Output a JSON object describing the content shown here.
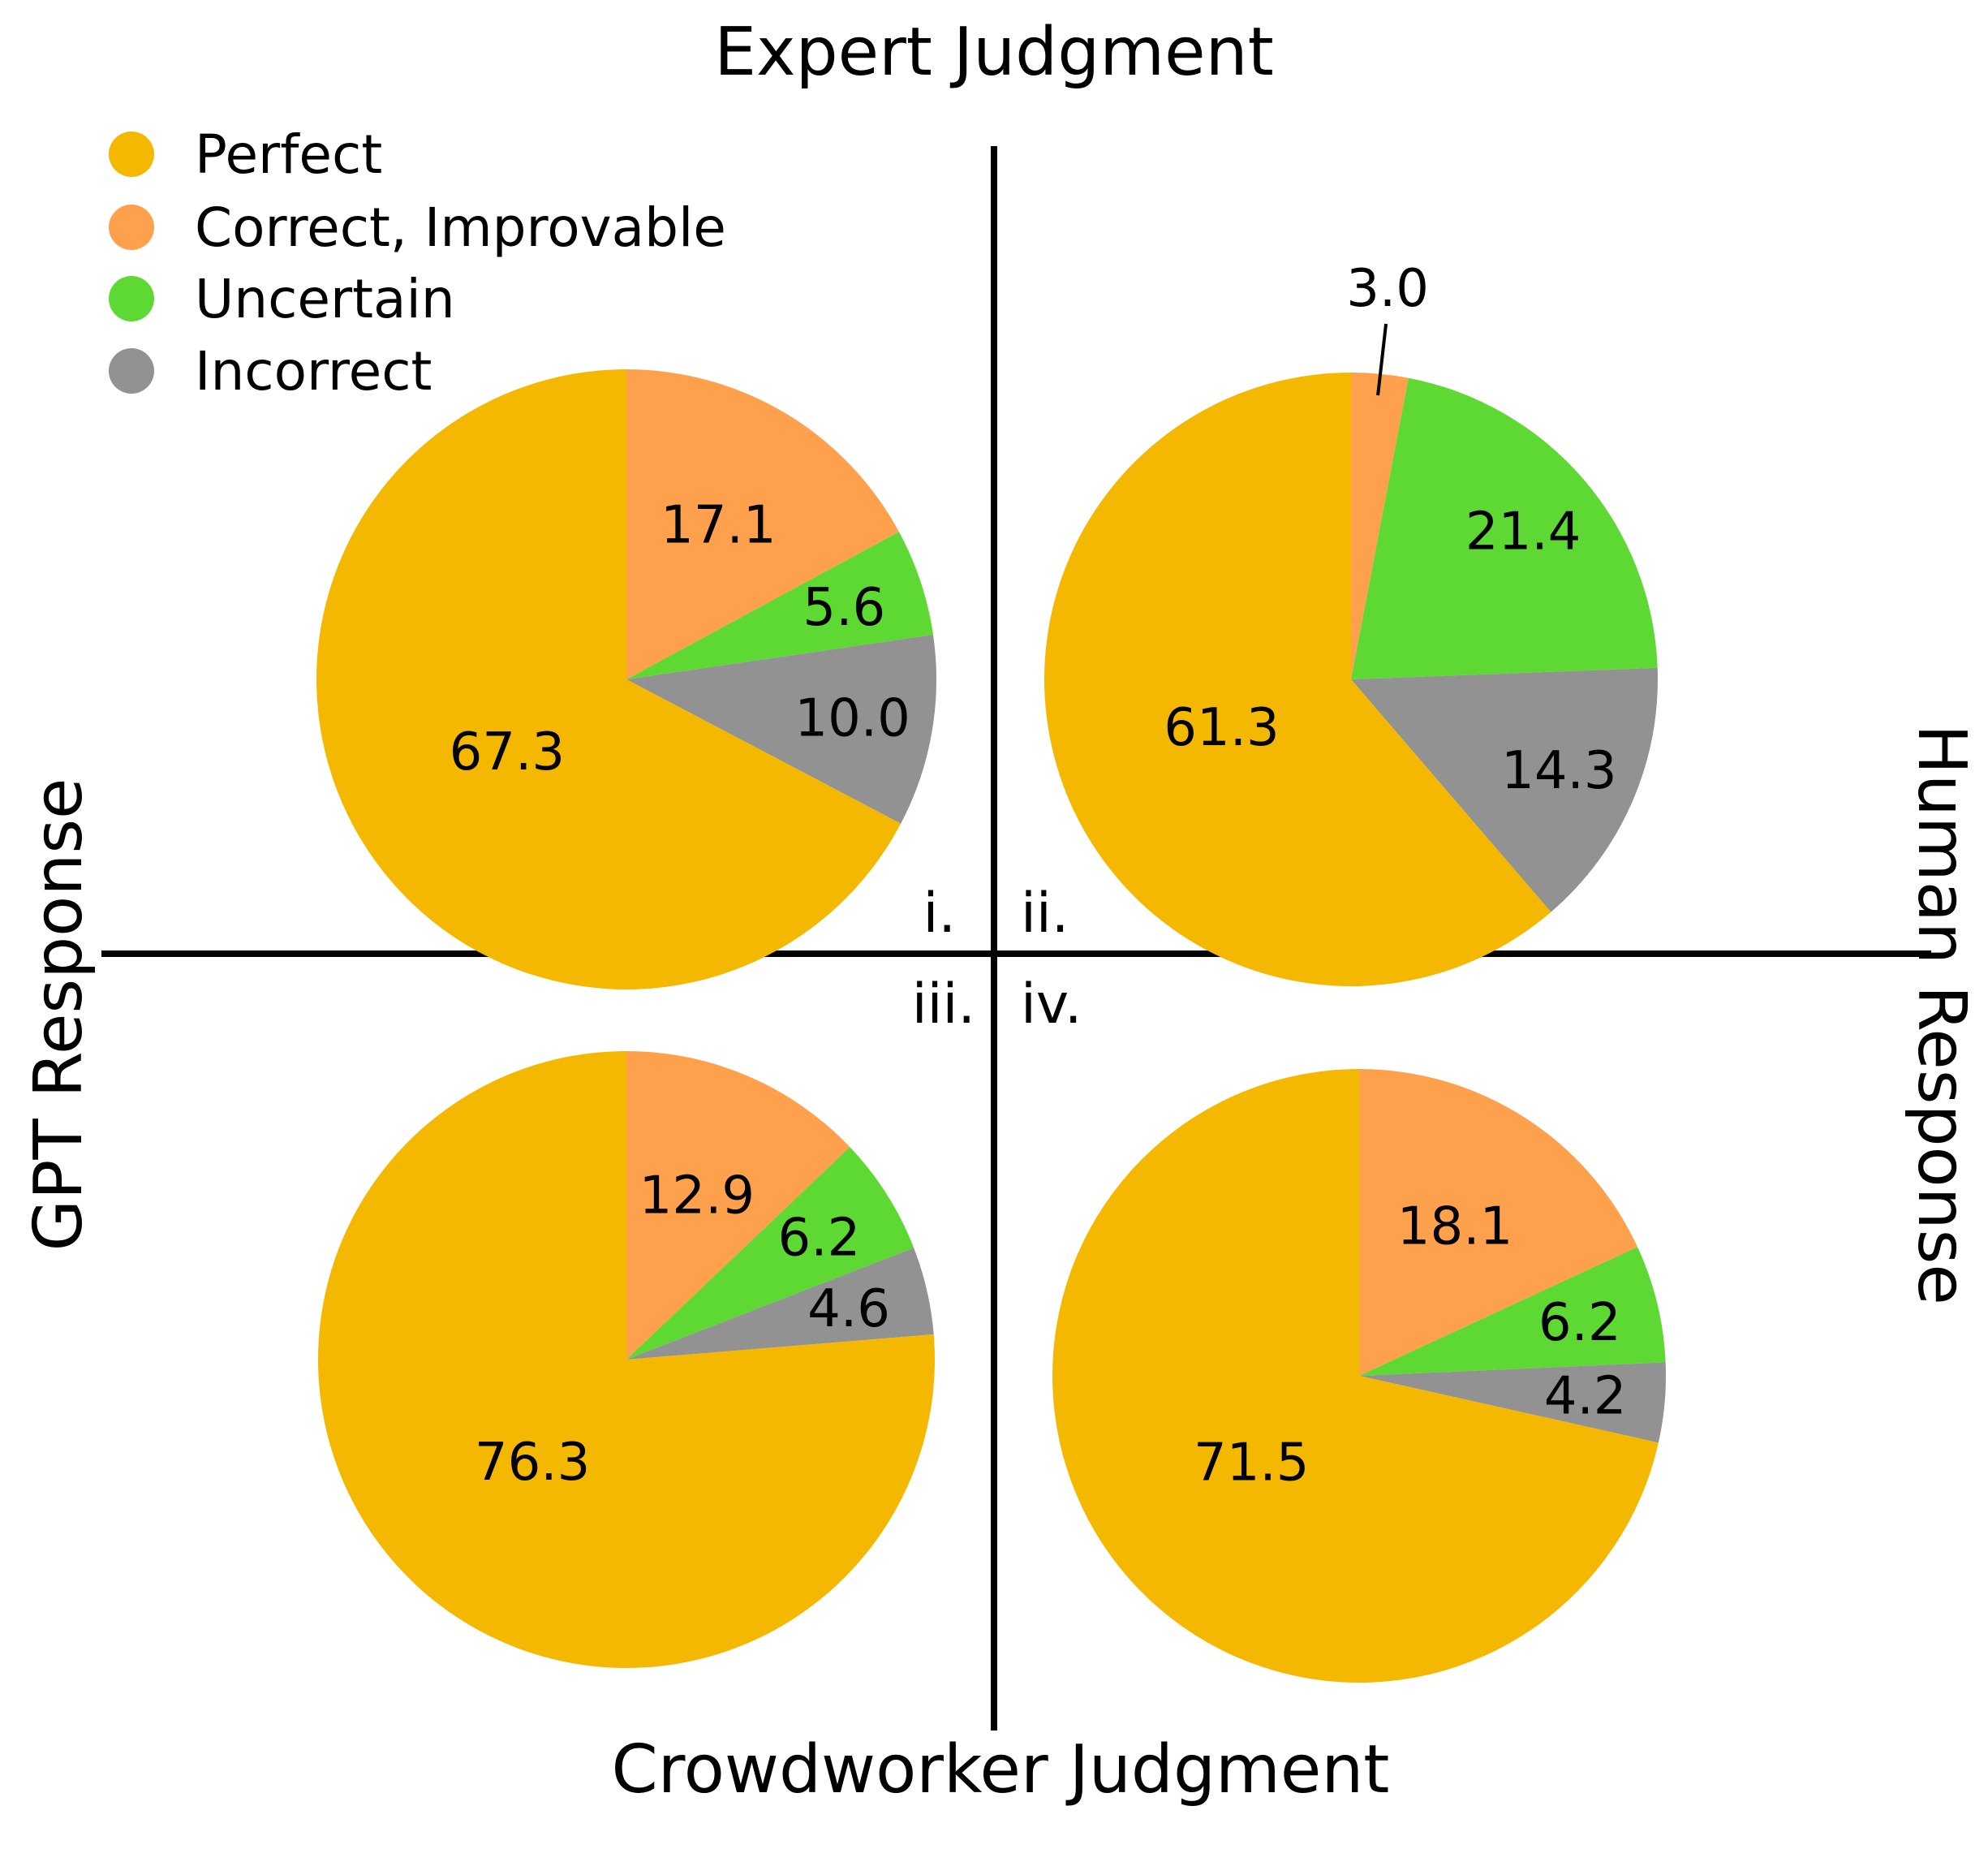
{
  "titles": {
    "top": "Expert Judgment",
    "bottom": "Crowdworker Judgment",
    "left": "GPT Response",
    "right": "Human Response"
  },
  "legend": [
    {
      "label": "Perfect",
      "color": "#F5B800"
    },
    {
      "label": "Correct, Improvable",
      "color": "#FFA04C"
    },
    {
      "label": "Uncertain",
      "color": "#5ED934"
    },
    {
      "label": "Incorrect",
      "color": "#929292"
    }
  ],
  "quadrant_labels": [
    "i.",
    "ii.",
    "iii.",
    "iv."
  ],
  "chart_data": [
    {
      "type": "pie",
      "quadrant": "i.",
      "categories": [
        "Perfect",
        "Correct, Improvable",
        "Uncertain",
        "Incorrect"
      ],
      "values": [
        67.3,
        17.1,
        5.6,
        10.0
      ],
      "labels": [
        "67.3",
        "17.1",
        "5.6",
        "10.0"
      ]
    },
    {
      "type": "pie",
      "quadrant": "ii.",
      "categories": [
        "Perfect",
        "Correct, Improvable",
        "Uncertain",
        "Incorrect"
      ],
      "values": [
        61.3,
        3.0,
        21.4,
        14.3
      ],
      "labels": [
        "61.3",
        "3.0",
        "21.4",
        "14.3"
      ]
    },
    {
      "type": "pie",
      "quadrant": "iii.",
      "categories": [
        "Perfect",
        "Correct, Improvable",
        "Uncertain",
        "Incorrect"
      ],
      "values": [
        76.3,
        12.9,
        6.2,
        4.6
      ],
      "labels": [
        "76.3",
        "12.9",
        "6.2",
        "4.6"
      ]
    },
    {
      "type": "pie",
      "quadrant": "iv.",
      "categories": [
        "Perfect",
        "Correct, Improvable",
        "Uncertain",
        "Incorrect"
      ],
      "values": [
        71.5,
        18.1,
        6.2,
        4.2
      ],
      "labels": [
        "71.5",
        "18.1",
        "6.2",
        "4.2"
      ]
    }
  ]
}
